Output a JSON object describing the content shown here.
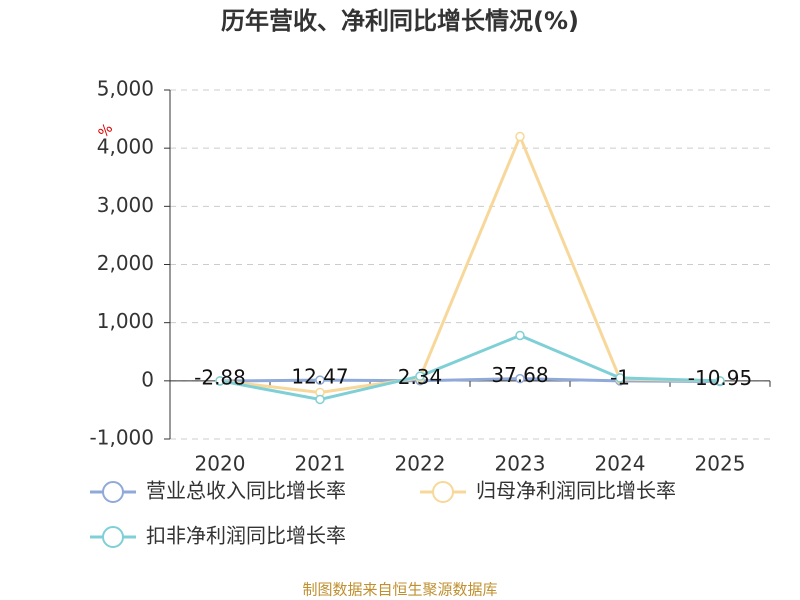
{
  "chart_data": {
    "type": "line",
    "title": "历年营收、净利同比增长情况(%)",
    "y_unit": "%",
    "source": "制图数据来自恒生聚源数据库",
    "categories": [
      "2020",
      "2021",
      "2022",
      "2023",
      "2024",
      "2025"
    ],
    "series": [
      {
        "name": "营业总收入同比增长率",
        "color": "#8fa9d9",
        "values": [
          -2.88,
          12.47,
          2.34,
          37.68,
          -1,
          -10.95
        ],
        "data_labels": true
      },
      {
        "name": "归母净利润同比增长率",
        "color": "#f8d89a",
        "values": [
          0,
          -200,
          50,
          4200,
          30,
          0
        ]
      },
      {
        "name": "扣非净利润同比增长率",
        "color": "#7fd0d6",
        "values": [
          0,
          -320,
          80,
          780,
          50,
          0
        ]
      }
    ],
    "ylim": [
      -1000,
      5000
    ],
    "yticks": [
      {
        "value": -1000,
        "label": "-1,000"
      },
      0,
      {
        "value": 1000,
        "label": "1,000"
      },
      {
        "value": 2000,
        "label": "2,000"
      },
      {
        "value": 3000,
        "label": "3,000"
      },
      {
        "value": 4000,
        "label": "4,000"
      },
      {
        "value": 5000,
        "label": "5,000"
      }
    ],
    "grid": true
  }
}
